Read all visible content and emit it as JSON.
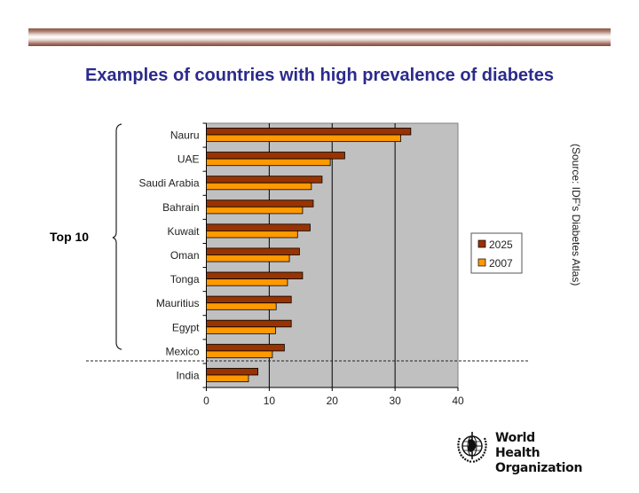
{
  "slide": {
    "title": "Examples of countries with high prevalence of diabetes",
    "annotation_top10": "Top 10",
    "source": "(Source: IDF's Diabetes Atlas)",
    "logo": {
      "line1": "World Health",
      "line2": "Organization",
      "icon": "who-emblem-icon"
    }
  },
  "colors": {
    "series_2025": "#993300",
    "series_2007": "#ff9900",
    "plot_bg": "#c0c0c0",
    "title": "#2b2b8c"
  },
  "chart_data": {
    "type": "bar",
    "orientation": "horizontal",
    "title": "",
    "xlabel": "",
    "ylabel": "",
    "categories": [
      "Nauru",
      "UAE",
      "Saudi Arabia",
      "Bahrain",
      "Kuwait",
      "Oman",
      "Tonga",
      "Mauritius",
      "Egypt",
      "Mexico",
      "India"
    ],
    "series": [
      {
        "name": "2025",
        "values": [
          32.5,
          22.0,
          18.4,
          17.0,
          16.5,
          14.8,
          15.3,
          13.5,
          13.5,
          12.4,
          8.2
        ]
      },
      {
        "name": "2007",
        "values": [
          30.9,
          19.7,
          16.7,
          15.3,
          14.5,
          13.2,
          12.9,
          11.1,
          11.0,
          10.5,
          6.7
        ]
      }
    ],
    "xlim": [
      0,
      40
    ],
    "xticks": [
      0,
      10,
      20,
      30,
      40
    ],
    "grid": "vertical major gridlines",
    "legend": {
      "position": "right",
      "entries": [
        "2025",
        "2007"
      ]
    },
    "annotations": [
      {
        "text": "Top 10",
        "type": "brace",
        "spans": [
          "Nauru",
          "Mexico"
        ]
      },
      {
        "type": "dashed-separator",
        "between": [
          "Mexico",
          "India"
        ]
      }
    ]
  }
}
